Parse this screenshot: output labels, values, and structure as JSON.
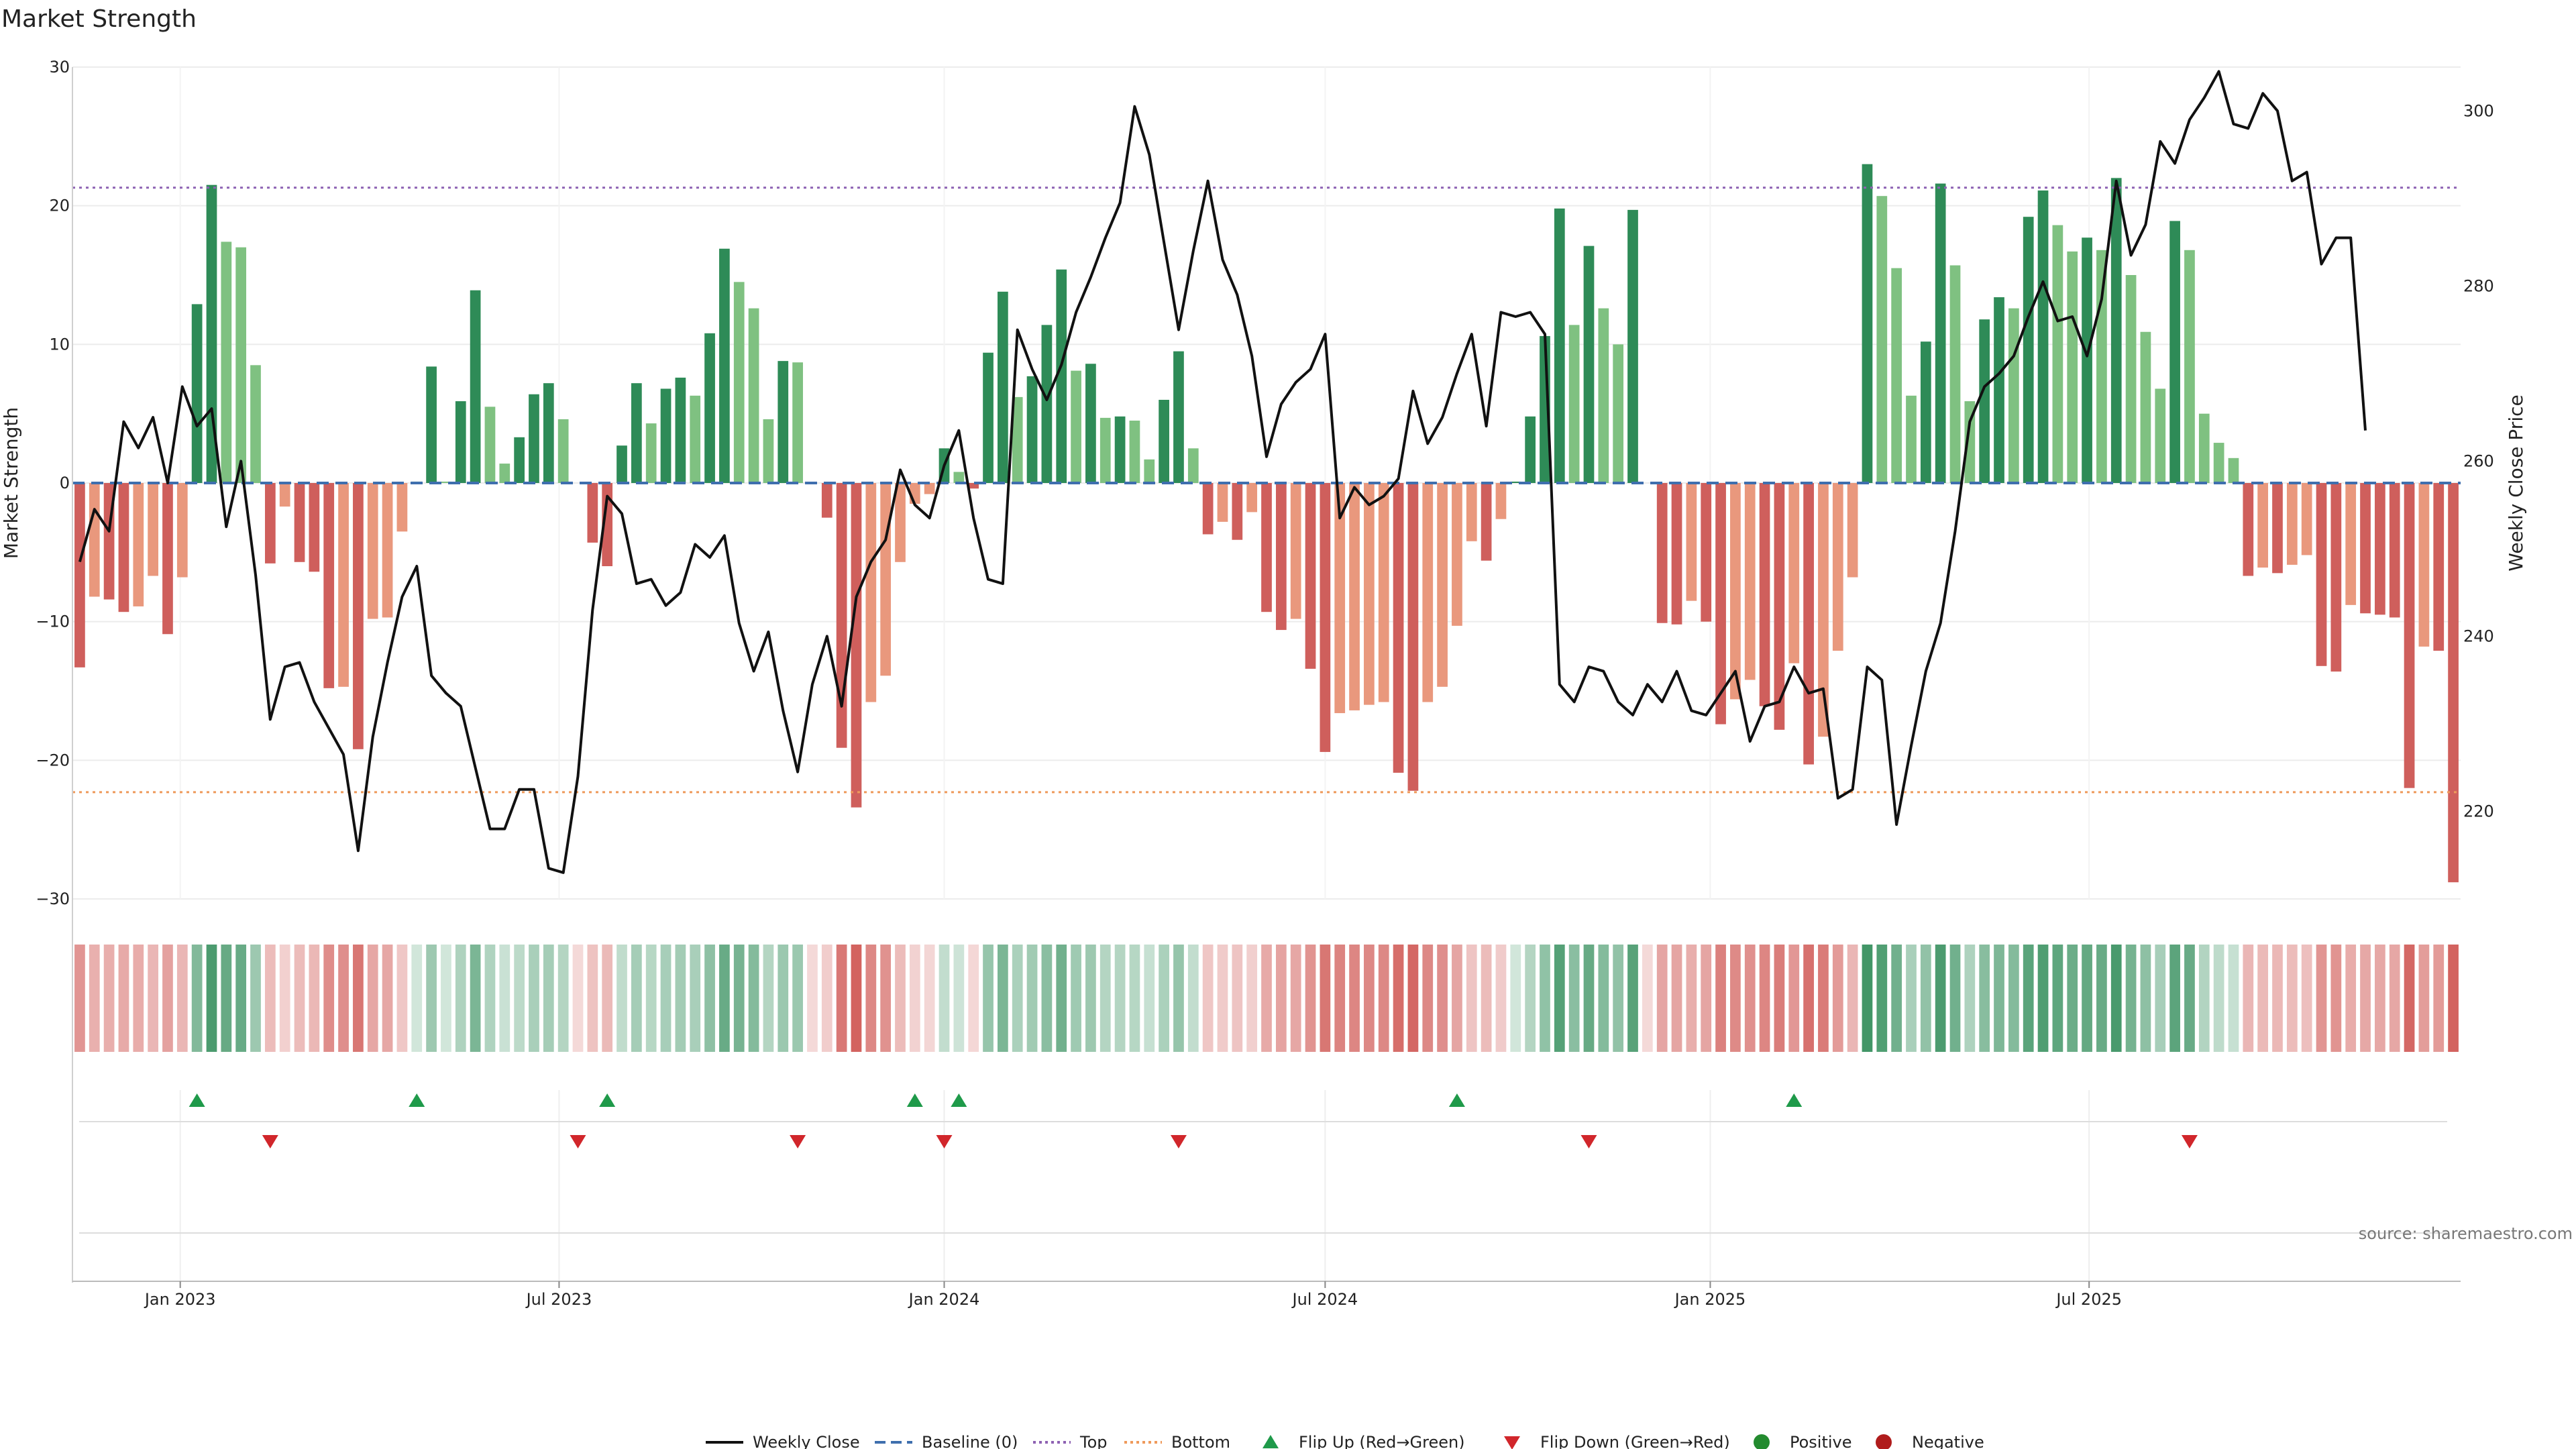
{
  "chart_data": {
    "type": "bar",
    "title": "Market Strength",
    "ylabel_left": "Market Strength",
    "ylabel_right": "Weekly Close Price",
    "source": "source: sharemaestro.com",
    "ylim_left": [
      -30,
      30
    ],
    "yticks_left": [
      30,
      20,
      10,
      0,
      -10,
      -20,
      -30
    ],
    "ylim_right": [
      210,
      305
    ],
    "yticks_right": [
      300,
      280,
      260,
      240,
      220
    ],
    "top_level": 21.3,
    "bottom_level": -22.3,
    "x_start": "2022-11-14",
    "week_step_days": 7,
    "x_ticks": [
      {
        "label": "Jan 2023",
        "date": "2023-01-01"
      },
      {
        "label": "Jul 2023",
        "date": "2023-07-01"
      },
      {
        "label": "Jan 2024",
        "date": "2024-01-01"
      },
      {
        "label": "Jul 2024",
        "date": "2024-07-01"
      },
      {
        "label": "Jan 2025",
        "date": "2025-01-01"
      },
      {
        "label": "Jul 2025",
        "date": "2025-07-01"
      }
    ],
    "strength": [
      -13.3,
      -8.2,
      -8.4,
      -9.3,
      -8.9,
      -6.7,
      -10.9,
      -6.8,
      12.9,
      21.5,
      17.4,
      17.0,
      8.5,
      -5.8,
      -1.7,
      -5.7,
      -6.4,
      -14.8,
      -14.7,
      -19.2,
      -9.8,
      -9.7,
      -3.5,
      0.1,
      8.4,
      0.1,
      5.9,
      13.9,
      5.5,
      1.4,
      3.3,
      6.4,
      7.2,
      4.6,
      0,
      -4.3,
      -6.0,
      2.7,
      7.2,
      4.3,
      6.8,
      7.6,
      6.3,
      10.8,
      16.9,
      14.5,
      12.6,
      4.6,
      8.8,
      8.7,
      0,
      -2.5,
      -19.1,
      -23.4,
      -15.8,
      -13.9,
      -5.7,
      -1.5,
      -0.8,
      2.5,
      0.8,
      -0.4,
      9.4,
      13.8,
      6.2,
      7.7,
      11.4,
      15.4,
      8.1,
      8.6,
      4.7,
      4.8,
      4.5,
      1.7,
      6.0,
      9.5,
      2.5,
      -3.7,
      -2.8,
      -4.1,
      -2.1,
      -9.3,
      -10.6,
      -9.8,
      -13.4,
      -19.4,
      -16.6,
      -16.4,
      -16.0,
      -15.8,
      -20.9,
      -22.2,
      -15.8,
      -14.7,
      -10.3,
      -4.2,
      -5.6,
      -2.6,
      0.1,
      4.8,
      10.6,
      19.8,
      11.4,
      17.1,
      12.6,
      10.0,
      19.7,
      0,
      -10.1,
      -10.2,
      -8.5,
      -10.0,
      -17.4,
      -15.6,
      -14.2,
      -16.1,
      -17.8,
      -13.0,
      -20.3,
      -18.3,
      -12.1,
      -6.8,
      23.0,
      20.7,
      15.5,
      6.3,
      10.2,
      21.6,
      15.7,
      5.9,
      11.8,
      13.4,
      12.6,
      19.2,
      21.1,
      18.6,
      16.7,
      17.7,
      16.8,
      22.0,
      15.0,
      10.9,
      6.8,
      18.9,
      16.8,
      5.0,
      2.9,
      1.8,
      -6.7,
      -6.1,
      -6.5,
      -5.9,
      -5.2,
      -13.2,
      -13.6,
      -8.8,
      -9.4,
      -9.5,
      -9.7,
      -22.0,
      -11.8,
      -12.1,
      -28.8
    ],
    "weekly_close": [
      248.5,
      254.5,
      252.0,
      264.5,
      261.5,
      265.0,
      257.5,
      268.5,
      264.0,
      266.0,
      252.5,
      260.0,
      247.0,
      230.5,
      236.5,
      237.0,
      232.5,
      229.5,
      226.5,
      215.5,
      228.5,
      237.0,
      244.5,
      248.0,
      235.5,
      233.5,
      232.0,
      225.0,
      218.0,
      218.0,
      222.5,
      222.5,
      213.5,
      213.0,
      224.0,
      243.0,
      256.0,
      254.0,
      246.0,
      246.5,
      243.5,
      245.0,
      250.5,
      249.0,
      251.5,
      241.5,
      236.0,
      240.5,
      231.5,
      224.5,
      234.5,
      240.0,
      232.0,
      244.5,
      248.5,
      251.0,
      259.0,
      255.0,
      253.5,
      259.5,
      263.5,
      253.5,
      246.5,
      246.0,
      275.0,
      270.5,
      267.0,
      271.0,
      277.0,
      281.0,
      285.5,
      289.5,
      300.5,
      295.0,
      285.0,
      275.0,
      284.0,
      292.0,
      283.0,
      279.0,
      272.0,
      260.5,
      266.5,
      269.0,
      270.5,
      274.5,
      253.5,
      257.0,
      255.0,
      256.0,
      258.0,
      268.0,
      262.0,
      265.0,
      270.0,
      274.5,
      264.0,
      277.0,
      276.5,
      277.0,
      274.5,
      234.5,
      232.5,
      236.5,
      236.0,
      232.5,
      231.0,
      234.5,
      232.5,
      236.0,
      231.5,
      231.0,
      233.5,
      236.0,
      228.0,
      232.0,
      232.5,
      236.5,
      233.5,
      234.0,
      221.5,
      222.5,
      236.5,
      235.0,
      218.5,
      227.5,
      236.0,
      241.5,
      252.0,
      264.5,
      268.5,
      270.0,
      272.0,
      276.5,
      280.5,
      276.0,
      276.5,
      272.0,
      278.5,
      292.0,
      283.5,
      287.0,
      296.5,
      294.0,
      299.0,
      301.5,
      304.5,
      298.5,
      298.0,
      302.0,
      300.0,
      292.0,
      293.0,
      282.5,
      285.5,
      285.5,
      263.5
    ],
    "flip_up_weeks": [
      8,
      23,
      36,
      57,
      60,
      94,
      117
    ],
    "flip_down_weeks": [
      13,
      34,
      49,
      59,
      75,
      103,
      144
    ],
    "series": [
      {
        "name": "Weekly Close",
        "color": "#111111",
        "style": "solid-line"
      },
      {
        "name": "Baseline (0)",
        "color": "#3f6fae",
        "style": "dashed-line"
      },
      {
        "name": "Top",
        "color": "#8e62b3",
        "style": "dotted-line"
      },
      {
        "name": "Bottom",
        "color": "#ef9a5b",
        "style": "dotted-line"
      },
      {
        "name": "Flip Up (Red→Green)",
        "color": "#1f9a4a",
        "style": "triangle-up"
      },
      {
        "name": "Flip Down (Green→Red)",
        "color": "#d1262b",
        "style": "triangle-down"
      },
      {
        "name": "Positive",
        "color": "#238b2f",
        "style": "dot"
      },
      {
        "name": "Negative",
        "color": "#b01c1c",
        "style": "dot"
      }
    ],
    "colors": {
      "pos_strong": "#2e8b57",
      "pos_weak": "#7fc181",
      "neg_strong": "#cf5f5c",
      "neg_weak": "#e9987d",
      "grid": "#ececec"
    }
  }
}
